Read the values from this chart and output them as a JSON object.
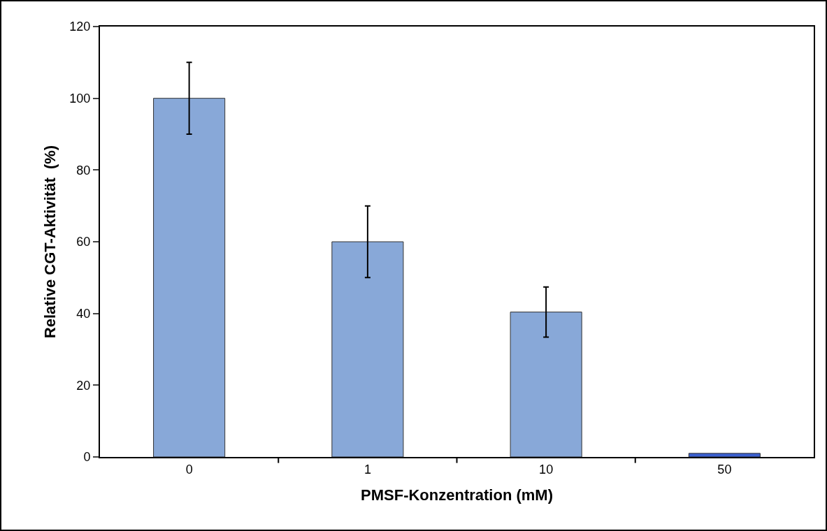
{
  "chart_data": {
    "type": "bar",
    "xlabel": "PMSF-Konzentration (mM)",
    "ylabel": "Relative CGT-Aktivität  (%)",
    "categories": [
      "0",
      "1",
      "10",
      "50"
    ],
    "values": [
      100,
      60,
      40.4,
      1
    ],
    "errors": [
      10,
      10,
      7,
      null
    ],
    "colors": [
      "#88a8d8",
      "#88a8d8",
      "#88a8d8",
      "#3a5fd0"
    ],
    "ylim": [
      0,
      120
    ],
    "yticks": [
      0,
      20,
      40,
      60,
      80,
      100,
      120
    ],
    "grid": false
  }
}
